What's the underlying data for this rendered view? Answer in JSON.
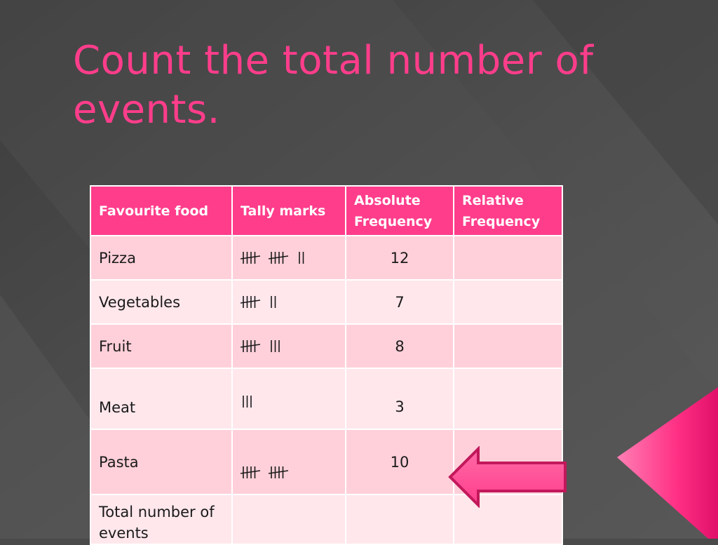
{
  "slide": {
    "title": "Count the total number of events."
  },
  "colors": {
    "background": "#4a4a4a",
    "accent_pink": "#ff3d8b",
    "row_odd": "#ffd0da",
    "row_even": "#ffe7ec",
    "header_text": "#ffffff"
  },
  "table": {
    "headers": {
      "food": "Favourite food",
      "tally": "Tally marks",
      "absolute": "Absolute Frequency",
      "relative": "Relative Frequency"
    },
    "rows": [
      {
        "food": "Pizza",
        "tally_count": 12,
        "absolute": "12",
        "relative": ""
      },
      {
        "food": "Vegetables",
        "tally_count": 7,
        "absolute": "7",
        "relative": ""
      },
      {
        "food": "Fruit",
        "tally_count": 8,
        "absolute": "8",
        "relative": ""
      },
      {
        "food": "Meat",
        "tally_count": 3,
        "absolute": "3",
        "relative": ""
      },
      {
        "food": "Pasta",
        "tally_count": 10,
        "absolute": "10",
        "relative": ""
      }
    ],
    "total_row": {
      "food": "Total number of events",
      "tally": "",
      "absolute": "",
      "relative": ""
    }
  },
  "decorations": {
    "pointer_arrow": "left-arrow-icon",
    "corner_shape": "pink-triangle"
  }
}
